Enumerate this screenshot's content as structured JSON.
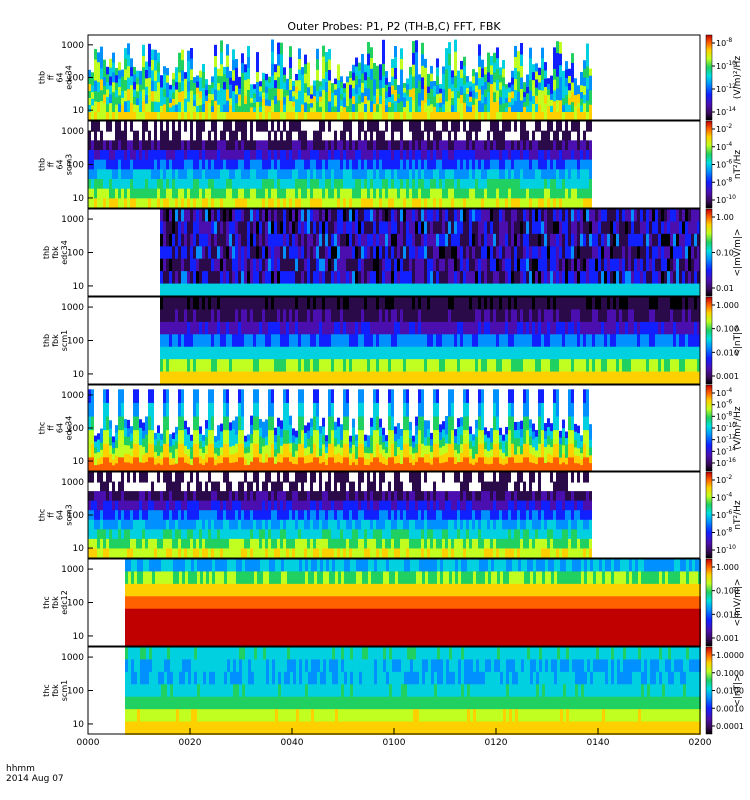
{
  "title": "Outer Probes: P1, P2 (TH-B,C) FFT, FBK",
  "time_axis": {
    "ticks": [
      "0000",
      "0020",
      "0040",
      "0100",
      "0120",
      "0140",
      "0200"
    ],
    "corner_line1": "hhmm",
    "corner_line2": "2014 Aug 07"
  },
  "chart_data": [
    {
      "type": "heatmap",
      "ylabel": [
        "thb",
        "ff",
        "64",
        "edc34"
      ],
      "y_ticks": [
        "1000",
        "100",
        "10"
      ],
      "zlabel": "(V/m)²/Hz",
      "z_ticks": [
        {
          "base": "10",
          "exp": "-8"
        },
        {
          "base": "10",
          "exp": "-10"
        },
        {
          "base": "10",
          "exp": "-12"
        },
        {
          "base": "10",
          "exp": "-14"
        }
      ],
      "scale": "log"
    },
    {
      "type": "heatmap",
      "ylabel": [
        "thb",
        "ff",
        "64",
        "scm3"
      ],
      "y_ticks": [
        "1000",
        "100",
        "10"
      ],
      "zlabel": "nT²/Hz",
      "z_ticks": [
        {
          "base": "10",
          "exp": "-2"
        },
        {
          "base": "10",
          "exp": "-4"
        },
        {
          "base": "10",
          "exp": "-6"
        },
        {
          "base": "10",
          "exp": "-8"
        },
        {
          "base": "10",
          "exp": "-10"
        }
      ],
      "scale": "log"
    },
    {
      "type": "heatmap",
      "ylabel": [
        "thb",
        "fbk",
        "edc34"
      ],
      "y_ticks": [
        "1000",
        "100",
        "10"
      ],
      "zlabel": "<|mV/m|>",
      "z_ticks": [
        "1.00",
        "0.10",
        "0.01"
      ],
      "scale": "log"
    },
    {
      "type": "heatmap",
      "ylabel": [
        "thb",
        "fbk",
        "scm1"
      ],
      "y_ticks": [
        "1000",
        "100",
        "10"
      ],
      "zlabel": "<|nT|>",
      "z_ticks": [
        "1.000",
        "0.100",
        "0.010",
        "0.001"
      ],
      "scale": "log"
    },
    {
      "type": "heatmap",
      "ylabel": [
        "thc",
        "ff",
        "64",
        "edc34"
      ],
      "y_ticks": [
        "1000",
        "100",
        "10"
      ],
      "zlabel": "(V/m)²/Hz",
      "z_ticks": [
        {
          "base": "10",
          "exp": "-4"
        },
        {
          "base": "10",
          "exp": "-6"
        },
        {
          "base": "10",
          "exp": "-8"
        },
        {
          "base": "10",
          "exp": "-10"
        },
        {
          "base": "10",
          "exp": "-12"
        },
        {
          "base": "10",
          "exp": "-14"
        },
        {
          "base": "10",
          "exp": "-16"
        }
      ],
      "scale": "log"
    },
    {
      "type": "heatmap",
      "ylabel": [
        "thc",
        "ff",
        "64",
        "scm3"
      ],
      "y_ticks": [
        "1000",
        "100",
        "10"
      ],
      "zlabel": "nT²/Hz",
      "z_ticks": [
        {
          "base": "10",
          "exp": "-2"
        },
        {
          "base": "10",
          "exp": "-4"
        },
        {
          "base": "10",
          "exp": "-6"
        },
        {
          "base": "10",
          "exp": "-8"
        },
        {
          "base": "10",
          "exp": "-10"
        }
      ],
      "scale": "log"
    },
    {
      "type": "heatmap",
      "ylabel": [
        "thc",
        "fbk",
        "edc12"
      ],
      "y_ticks": [
        "1000",
        "100",
        "10"
      ],
      "zlabel": "<|mV/m|>",
      "z_ticks": [
        "1.000",
        "0.100",
        "0.010",
        "0.001"
      ],
      "scale": "log"
    },
    {
      "type": "heatmap",
      "ylabel": [
        "thc",
        "fbk",
        "scm1"
      ],
      "y_ticks": [
        "1000",
        "100",
        "10"
      ],
      "zlabel": "<|nT|>",
      "z_ticks": [
        "1.0000",
        "0.1000",
        "0.0100",
        "0.0010",
        "0.0001"
      ],
      "scale": "log"
    }
  ]
}
